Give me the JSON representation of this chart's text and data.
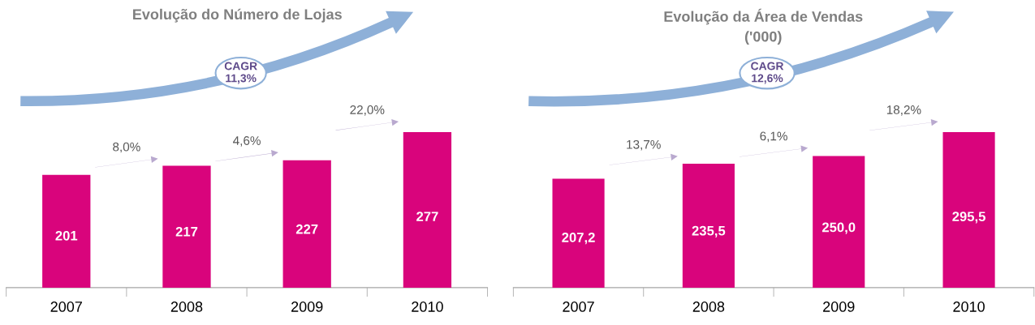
{
  "chart_data": [
    {
      "type": "bar",
      "title": "Evolução do Número de Lojas",
      "categories": [
        "2007",
        "2008",
        "2009",
        "2010"
      ],
      "values": [
        201,
        217,
        227,
        277
      ],
      "color": "#d9047c",
      "data_labels": true,
      "annotations": [
        "8,0%",
        "4,6%",
        "22,0%",
        "CAGR\n11,3%"
      ]
    },
    {
      "type": "bar",
      "title": "Evolução da Área de Vendas\n('000)",
      "categories": [
        "2007",
        "2008",
        "2009",
        "2010"
      ],
      "values": [
        207.2,
        235.5,
        250.0,
        295.5
      ],
      "color": "#d9047c",
      "data_labels": true,
      "value_labels": [
        "207,2",
        "235,5",
        "250,0",
        "295,5"
      ],
      "annotations": [
        "13,7%",
        "6,1%",
        "18,2%",
        "CAGR\n12,6%"
      ]
    }
  ]
}
